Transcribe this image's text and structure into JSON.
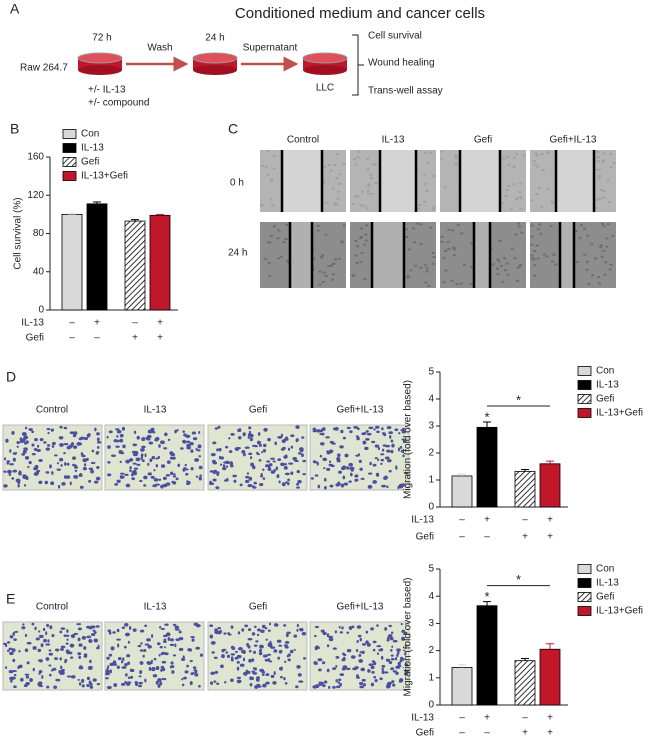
{
  "panel_labels": [
    "A",
    "B",
    "C",
    "D",
    "E"
  ],
  "panel_a": {
    "title": "Conditioned medium and cancer cells",
    "source": "Raw 264.7",
    "steps": [
      "72 h",
      "Wash",
      "24 h",
      "Supernatant"
    ],
    "target": "LLC",
    "treatments": [
      "+/- IL-13",
      "+/- compound"
    ],
    "assays": [
      "Cell survival",
      "Wound healing",
      "Trans-well assay"
    ]
  },
  "panel_c": {
    "columns": [
      "Control",
      "IL-13",
      "Gefi",
      "Gefi+IL-13"
    ],
    "rows": [
      "0 h",
      "24 h"
    ]
  },
  "panel_d": {
    "columns": [
      "Control",
      "IL-13",
      "Gefi",
      "Gefi+IL-13"
    ]
  },
  "panel_e": {
    "columns": [
      "Control",
      "IL-13",
      "Gefi",
      "Gefi+IL-13"
    ]
  },
  "chart_data": [
    {
      "type": "bar",
      "y_label": "Cell survival (%)",
      "ylim": [
        0,
        160
      ],
      "yticks": [
        0,
        40,
        80,
        120,
        160
      ],
      "series": [
        {
          "name": "Con",
          "color": "#d9d9d9",
          "values": [
            100
          ],
          "errors": [
            0.5
          ]
        },
        {
          "name": "IL-13",
          "color": "#000000",
          "values": [
            111
          ],
          "errors": [
            2
          ]
        },
        {
          "name": "Gefi",
          "color": "#ffffff",
          "pattern": "hatch",
          "values": [
            93
          ],
          "errors": [
            1.5
          ]
        },
        {
          "name": "IL-13+Gefi",
          "color": "#c0182a",
          "values": [
            99
          ],
          "errors": [
            1
          ]
        }
      ],
      "conditions": [
        {
          "name": "IL-13",
          "marks": [
            "–",
            "+",
            "–",
            "+"
          ]
        },
        {
          "name": "Gefi",
          "marks": [
            "–",
            "–",
            "+",
            "+"
          ]
        }
      ],
      "annotations": []
    },
    {
      "type": "bar",
      "y_label": "Migration (fold over based)",
      "ylim": [
        0,
        5
      ],
      "yticks": [
        0,
        1,
        2,
        3,
        4,
        5
      ],
      "series": [
        {
          "name": "Con",
          "color": "#d9d9d9",
          "values": [
            1.15
          ],
          "errors": [
            0.07
          ]
        },
        {
          "name": "IL-13",
          "color": "#000000",
          "values": [
            2.95
          ],
          "errors": [
            0.2
          ]
        },
        {
          "name": "Gefi",
          "color": "#ffffff",
          "pattern": "hatch",
          "values": [
            1.32
          ],
          "errors": [
            0.07
          ]
        },
        {
          "name": "IL-13+Gefi",
          "color": "#c0182a",
          "values": [
            1.6
          ],
          "errors": [
            0.1
          ]
        }
      ],
      "conditions": [
        {
          "name": "IL-13",
          "marks": [
            "–",
            "+",
            "–",
            "+"
          ]
        },
        {
          "name": "Gefi",
          "marks": [
            "–",
            "–",
            "+",
            "+"
          ]
        }
      ],
      "annotations": [
        "*",
        "*"
      ]
    },
    {
      "type": "bar",
      "y_label": "Migration (fold over based)",
      "ylim": [
        0,
        5
      ],
      "yticks": [
        0,
        1,
        2,
        3,
        4,
        5
      ],
      "series": [
        {
          "name": "Con",
          "color": "#d9d9d9",
          "values": [
            1.38
          ],
          "errors": [
            0.1
          ]
        },
        {
          "name": "IL-13",
          "color": "#000000",
          "values": [
            3.65
          ],
          "errors": [
            0.15
          ]
        },
        {
          "name": "Gefi",
          "color": "#ffffff",
          "pattern": "hatch",
          "values": [
            1.63
          ],
          "errors": [
            0.08
          ]
        },
        {
          "name": "IL-13+Gefi",
          "color": "#c0182a",
          "values": [
            2.05
          ],
          "errors": [
            0.2
          ]
        }
      ],
      "conditions": [
        {
          "name": "IL-13",
          "marks": [
            "–",
            "+",
            "–",
            "+"
          ]
        },
        {
          "name": "Gefi",
          "marks": [
            "–",
            "–",
            "+",
            "+"
          ]
        }
      ],
      "annotations": [
        "*",
        "*"
      ]
    }
  ]
}
